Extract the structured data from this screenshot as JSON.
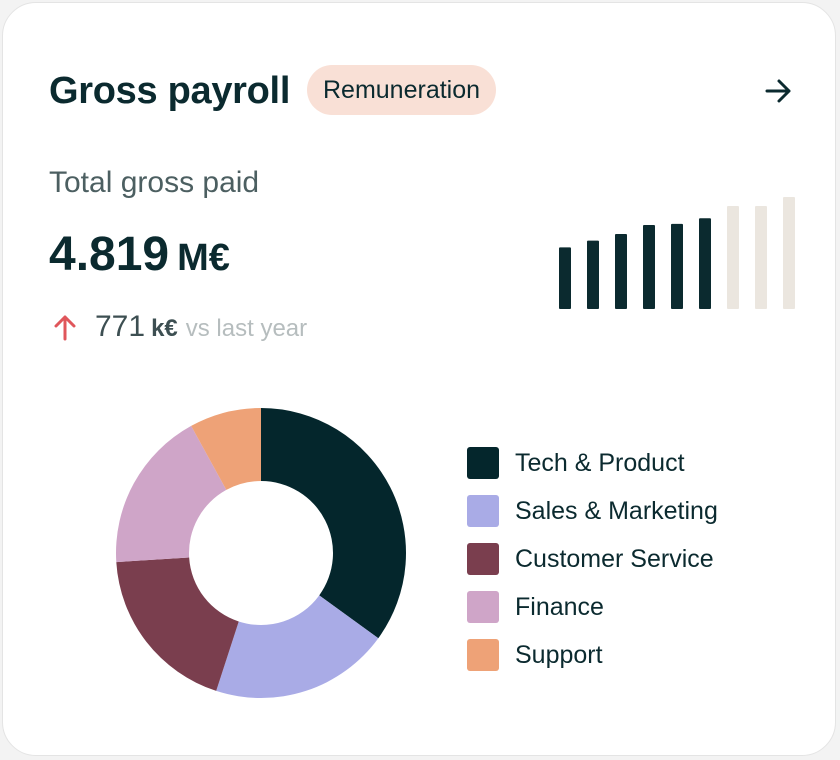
{
  "card": {
    "title": "Gross payroll",
    "badge": "Remuneration",
    "open_icon": "arrow-right-icon"
  },
  "summary": {
    "label": "Total gross paid",
    "total_value": "4.819",
    "total_unit": "M€",
    "delta_icon": "arrow-up-icon",
    "delta_value": "771",
    "delta_unit": "k€",
    "delta_note": "vs last year"
  },
  "colors": {
    "ink": "#0b2a2f",
    "badge_bg": "#f9e0d6",
    "up_arrow": "#e0565b",
    "spark_future": "#ebe6df"
  },
  "sparkline": {
    "values": [
      0.55,
      0.61,
      0.67,
      0.75,
      0.76,
      0.81,
      0.92,
      0.92,
      1.0
    ],
    "highlighted_count": 6
  },
  "chart_data": {
    "type": "pie",
    "donut": true,
    "series": [
      {
        "name": "Tech & Product",
        "value": 35,
        "color": "#04262c"
      },
      {
        "name": "Sales & Marketing",
        "value": 20,
        "color": "#a9abe6"
      },
      {
        "name": "Customer Service",
        "value": 19,
        "color": "#7a3e4e"
      },
      {
        "name": "Finance",
        "value": 18,
        "color": "#cfa5c8"
      },
      {
        "name": "Support",
        "value": 8,
        "color": "#eea277"
      }
    ]
  }
}
